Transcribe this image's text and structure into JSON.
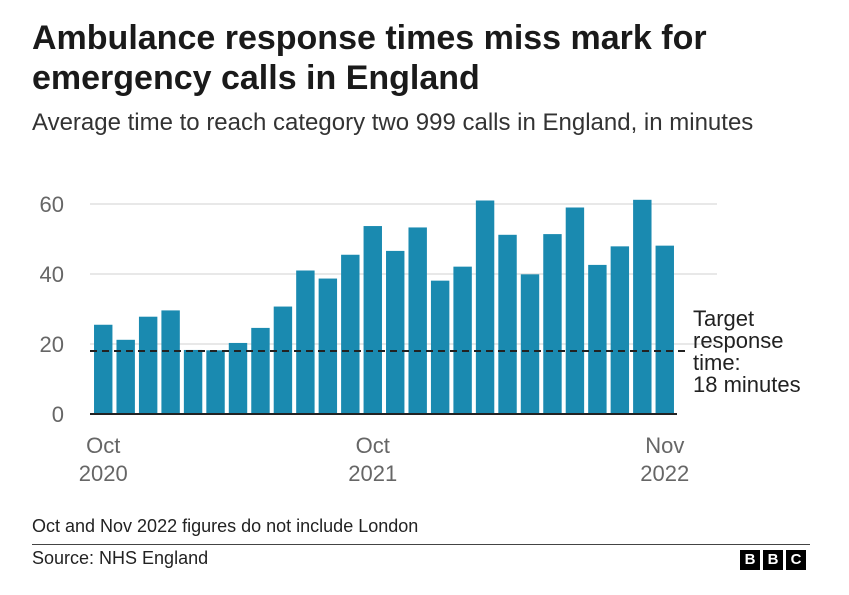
{
  "title": "Ambulance response times miss mark for emergency calls in England",
  "subtitle": "Average time to reach category two 999 calls in England, in minutes",
  "note": "Oct and Nov 2022 figures do not include London",
  "source": "Source: NHS England",
  "logo": [
    "B",
    "B",
    "C"
  ],
  "colors": {
    "bar": "#1a8ab0",
    "grid": "#d9d9d9",
    "axis": "#222222",
    "target": "#222222"
  },
  "chart_data": {
    "type": "bar",
    "title": "Ambulance response times miss mark for emergency calls in England",
    "ylabel": "",
    "xlabel": "",
    "ylim": [
      0,
      60
    ],
    "yticks": [
      0,
      20,
      40,
      60
    ],
    "categories": [
      "Oct 2020",
      "Nov 2020",
      "Dec 2020",
      "Jan 2021",
      "Feb 2021",
      "Mar 2021",
      "Apr 2021",
      "May 2021",
      "Jun 2021",
      "Jul 2021",
      "Aug 2021",
      "Sep 2021",
      "Oct 2021",
      "Nov 2021",
      "Dec 2021",
      "Jan 2022",
      "Feb 2022",
      "Mar 2022",
      "Apr 2022",
      "May 2022",
      "Jun 2022",
      "Jul 2022",
      "Aug 2022",
      "Sep 2022",
      "Oct 2022",
      "Nov 2022"
    ],
    "values": [
      25.5,
      21.2,
      27.8,
      29.6,
      18.3,
      18.2,
      20.3,
      24.6,
      30.7,
      41.0,
      38.7,
      45.5,
      53.7,
      46.6,
      53.3,
      38.1,
      42.1,
      61.0,
      51.2,
      39.9,
      51.4,
      59.0,
      42.6,
      47.9,
      61.2,
      48.1
    ],
    "x_tick_labels": [
      {
        "category": "Oct 2020",
        "line1": "Oct",
        "line2": "2020"
      },
      {
        "category": "Oct 2021",
        "line1": "Oct",
        "line2": "2021"
      },
      {
        "category": "Nov 2022",
        "line1": "Nov",
        "line2": "2022"
      }
    ],
    "target": {
      "value": 18,
      "label_lines": [
        "Target",
        "response",
        "time:",
        "18 minutes"
      ]
    }
  }
}
